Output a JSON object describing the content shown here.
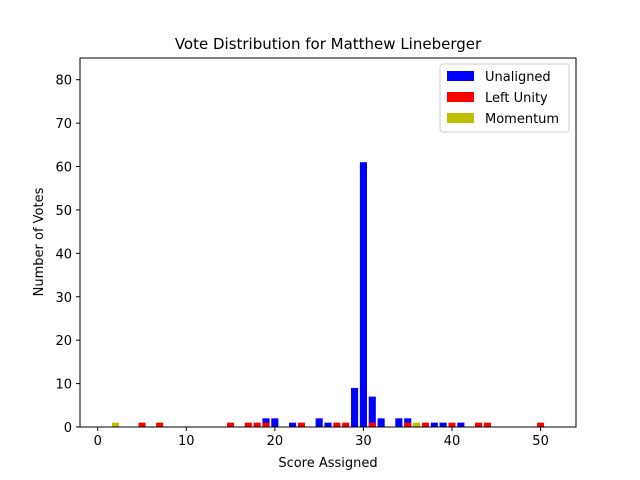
{
  "chart_data": {
    "type": "bar",
    "title": "Vote Distribution for Matthew Lineberger",
    "xlabel": "Score Assigned",
    "ylabel": "Number of Votes",
    "xlim": [
      -2,
      54
    ],
    "ylim": [
      0,
      85
    ],
    "xticks": [
      0,
      10,
      20,
      30,
      40,
      50
    ],
    "yticks": [
      0,
      10,
      20,
      30,
      40,
      50,
      60,
      70,
      80
    ],
    "legend_position": "top-right",
    "series": [
      {
        "name": "Unaligned",
        "color": "#0000ff",
        "x": [
          19,
          20,
          22,
          25,
          26,
          29,
          30,
          31,
          32,
          34,
          35,
          38,
          39,
          41
        ],
        "values": [
          2,
          2,
          1,
          2,
          1,
          9,
          61,
          7,
          2,
          2,
          2,
          1,
          1,
          1
        ]
      },
      {
        "name": "Left Unity",
        "color": "#ff0000",
        "x": [
          5,
          7,
          15,
          17,
          18,
          19,
          23,
          27,
          28,
          31,
          35,
          37,
          40,
          43,
          44,
          50
        ],
        "values": [
          1,
          1,
          1,
          1,
          1,
          1,
          1,
          1,
          1,
          1,
          1,
          1,
          1,
          1,
          1,
          1
        ]
      },
      {
        "name": "Momentum",
        "color": "#bfbf00",
        "x": [
          2,
          36
        ],
        "values": [
          1,
          1
        ]
      }
    ]
  }
}
